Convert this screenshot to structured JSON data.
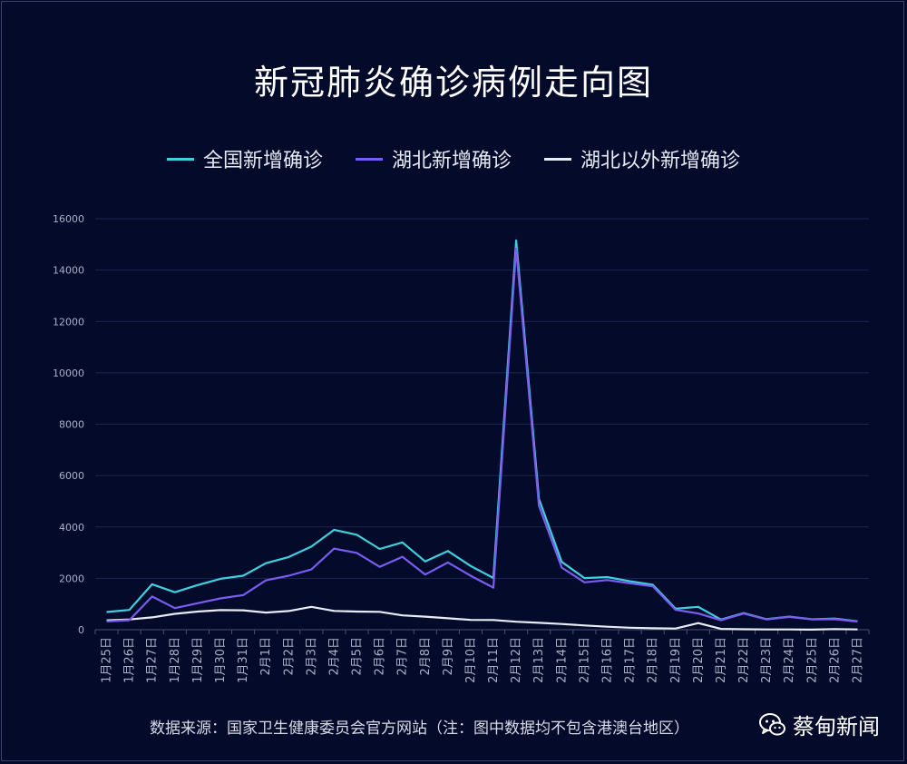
{
  "chart_data": {
    "type": "line",
    "title": "新冠肺炎确诊病例走向图",
    "xlabel": "",
    "ylabel": "",
    "ylim": [
      0,
      16000
    ],
    "yticks": [
      0,
      2000,
      4000,
      6000,
      8000,
      10000,
      12000,
      14000,
      16000
    ],
    "grid": true,
    "legend_position": "top-center",
    "categories": [
      "1月25日",
      "1月26日",
      "1月27日",
      "1月28日",
      "1月29日",
      "1月30日",
      "1月31日",
      "2月1日",
      "2月2日",
      "2月3日",
      "2月4日",
      "2月5日",
      "2月6日",
      "2月7日",
      "2月8日",
      "2月9日",
      "2月10日",
      "2月11日",
      "2月12日",
      "2月13日",
      "2月14日",
      "2月15日",
      "2月16日",
      "2月17日",
      "2月18日",
      "2月19日",
      "2月20日",
      "2月21日",
      "2月22日",
      "2月23日",
      "2月24日",
      "2月25日",
      "2月26日",
      "2月27日"
    ],
    "series": [
      {
        "name": "全国新增确诊",
        "color": "#3fd0e0",
        "values": [
          688,
          769,
          1771,
          1459,
          1737,
          1982,
          2102,
          2590,
          2829,
          3235,
          3887,
          3694,
          3143,
          3399,
          2656,
          3062,
          2478,
          2015,
          15152,
          5090,
          2641,
          2009,
          2048,
          1886,
          1749,
          820,
          889,
          397,
          648,
          409,
          508,
          406,
          433,
          327
        ]
      },
      {
        "name": "湖北新增确诊",
        "color": "#7a5cf0",
        "values": [
          323,
          371,
          1291,
          840,
          1032,
          1220,
          1347,
          1921,
          2103,
          2345,
          3156,
          2987,
          2447,
          2841,
          2147,
          2618,
          2097,
          1638,
          14840,
          4823,
          2420,
          1843,
          1933,
          1807,
          1693,
          775,
          631,
          366,
          630,
          398,
          499,
          401,
          409,
          318
        ]
      },
      {
        "name": "湖北以外新增确诊",
        "color": "#e8ecf4",
        "values": [
          365,
          398,
          480,
          619,
          705,
          762,
          755,
          669,
          726,
          890,
          731,
          707,
          696,
          558,
          509,
          444,
          381,
          377,
          312,
          267,
          221,
          166,
          115,
          79,
          56,
          45,
          258,
          31,
          18,
          11,
          9,
          5,
          24,
          9
        ]
      }
    ]
  },
  "footer": {
    "source_text": "数据来源：国家卫生健康委员会官方网站（注：图中数据均不包含港澳台地区）"
  },
  "brand": {
    "name": "蔡甸新闻"
  },
  "colors": {
    "background": "#030a2a",
    "grid": "#1c2550",
    "axis_text": "#a9b1c8"
  }
}
